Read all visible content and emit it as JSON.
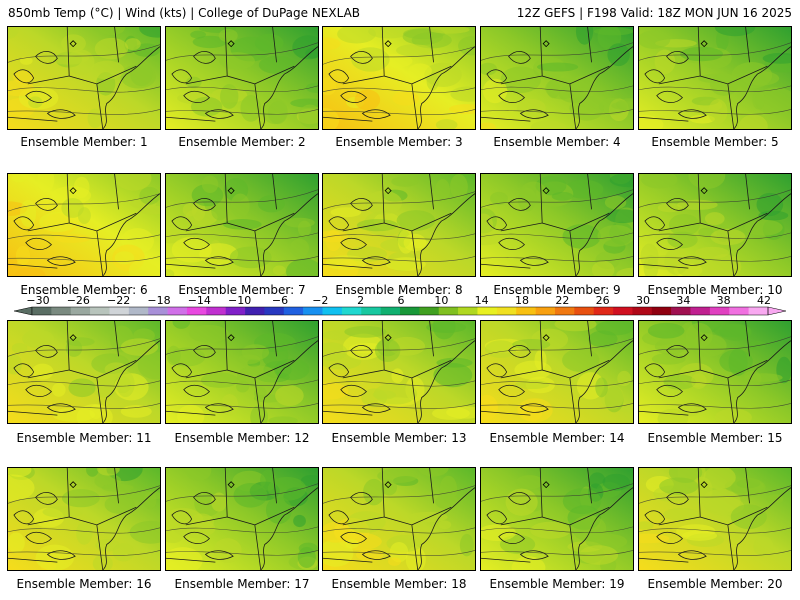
{
  "header": {
    "left": "850mb Temp (°C) | Wind (kts) | College of DuPage NEXLAB",
    "right": "12Z GEFS | F198 Valid: 18Z MON JUN 16 2025"
  },
  "panels": [
    {
      "label": "Ensemble Member: 1",
      "tone": 0.55
    },
    {
      "label": "Ensemble Member: 2",
      "tone": 0.25
    },
    {
      "label": "Ensemble Member: 3",
      "tone": 0.6
    },
    {
      "label": "Ensemble Member: 4",
      "tone": 0.3
    },
    {
      "label": "Ensemble Member: 5",
      "tone": 0.35
    },
    {
      "label": "Ensemble Member: 6",
      "tone": 0.6
    },
    {
      "label": "Ensemble Member: 7",
      "tone": 0.35
    },
    {
      "label": "Ensemble Member: 8",
      "tone": 0.55
    },
    {
      "label": "Ensemble Member: 9",
      "tone": 0.4
    },
    {
      "label": "Ensemble Member: 10",
      "tone": 0.35
    },
    {
      "label": "Ensemble Member: 11",
      "tone": 0.55
    },
    {
      "label": "Ensemble Member: 12",
      "tone": 0.4
    },
    {
      "label": "Ensemble Member: 13",
      "tone": 0.5
    },
    {
      "label": "Ensemble Member: 14",
      "tone": 0.55
    },
    {
      "label": "Ensemble Member: 15",
      "tone": 0.4
    },
    {
      "label": "Ensemble Member: 16",
      "tone": 0.55
    },
    {
      "label": "Ensemble Member: 17",
      "tone": 0.35
    },
    {
      "label": "Ensemble Member: 18",
      "tone": 0.5
    },
    {
      "label": "Ensemble Member: 19",
      "tone": 0.35
    },
    {
      "label": "Ensemble Member: 20",
      "tone": 0.45
    }
  ],
  "colorbar": {
    "ticks": [
      "−30",
      "−26",
      "−22",
      "−18",
      "−14",
      "−10",
      "−6",
      "−2",
      "2",
      "6",
      "10",
      "14",
      "18",
      "22",
      "26",
      "30",
      "34",
      "38",
      "42"
    ],
    "colors": [
      "#5a6e64",
      "#7a8a80",
      "#9aa8a0",
      "#b8c4bc",
      "#d0d4d8",
      "#b0b8c8",
      "#a890d8",
      "#d070e8",
      "#e848e0",
      "#c030d0",
      "#8020c8",
      "#4020b0",
      "#2838c0",
      "#2060e0",
      "#1890f0",
      "#10c0f0",
      "#20d8d0",
      "#18c8a0",
      "#10b070",
      "#189838",
      "#40a020",
      "#80c020",
      "#b0d820",
      "#e8f020",
      "#f0e020",
      "#f8c010",
      "#f8a010",
      "#f07810",
      "#e85010",
      "#e02818",
      "#d01020",
      "#b00818",
      "#900010",
      "#a01050",
      "#c02090",
      "#e040c0",
      "#f070e0",
      "#f8a8f0"
    ]
  }
}
